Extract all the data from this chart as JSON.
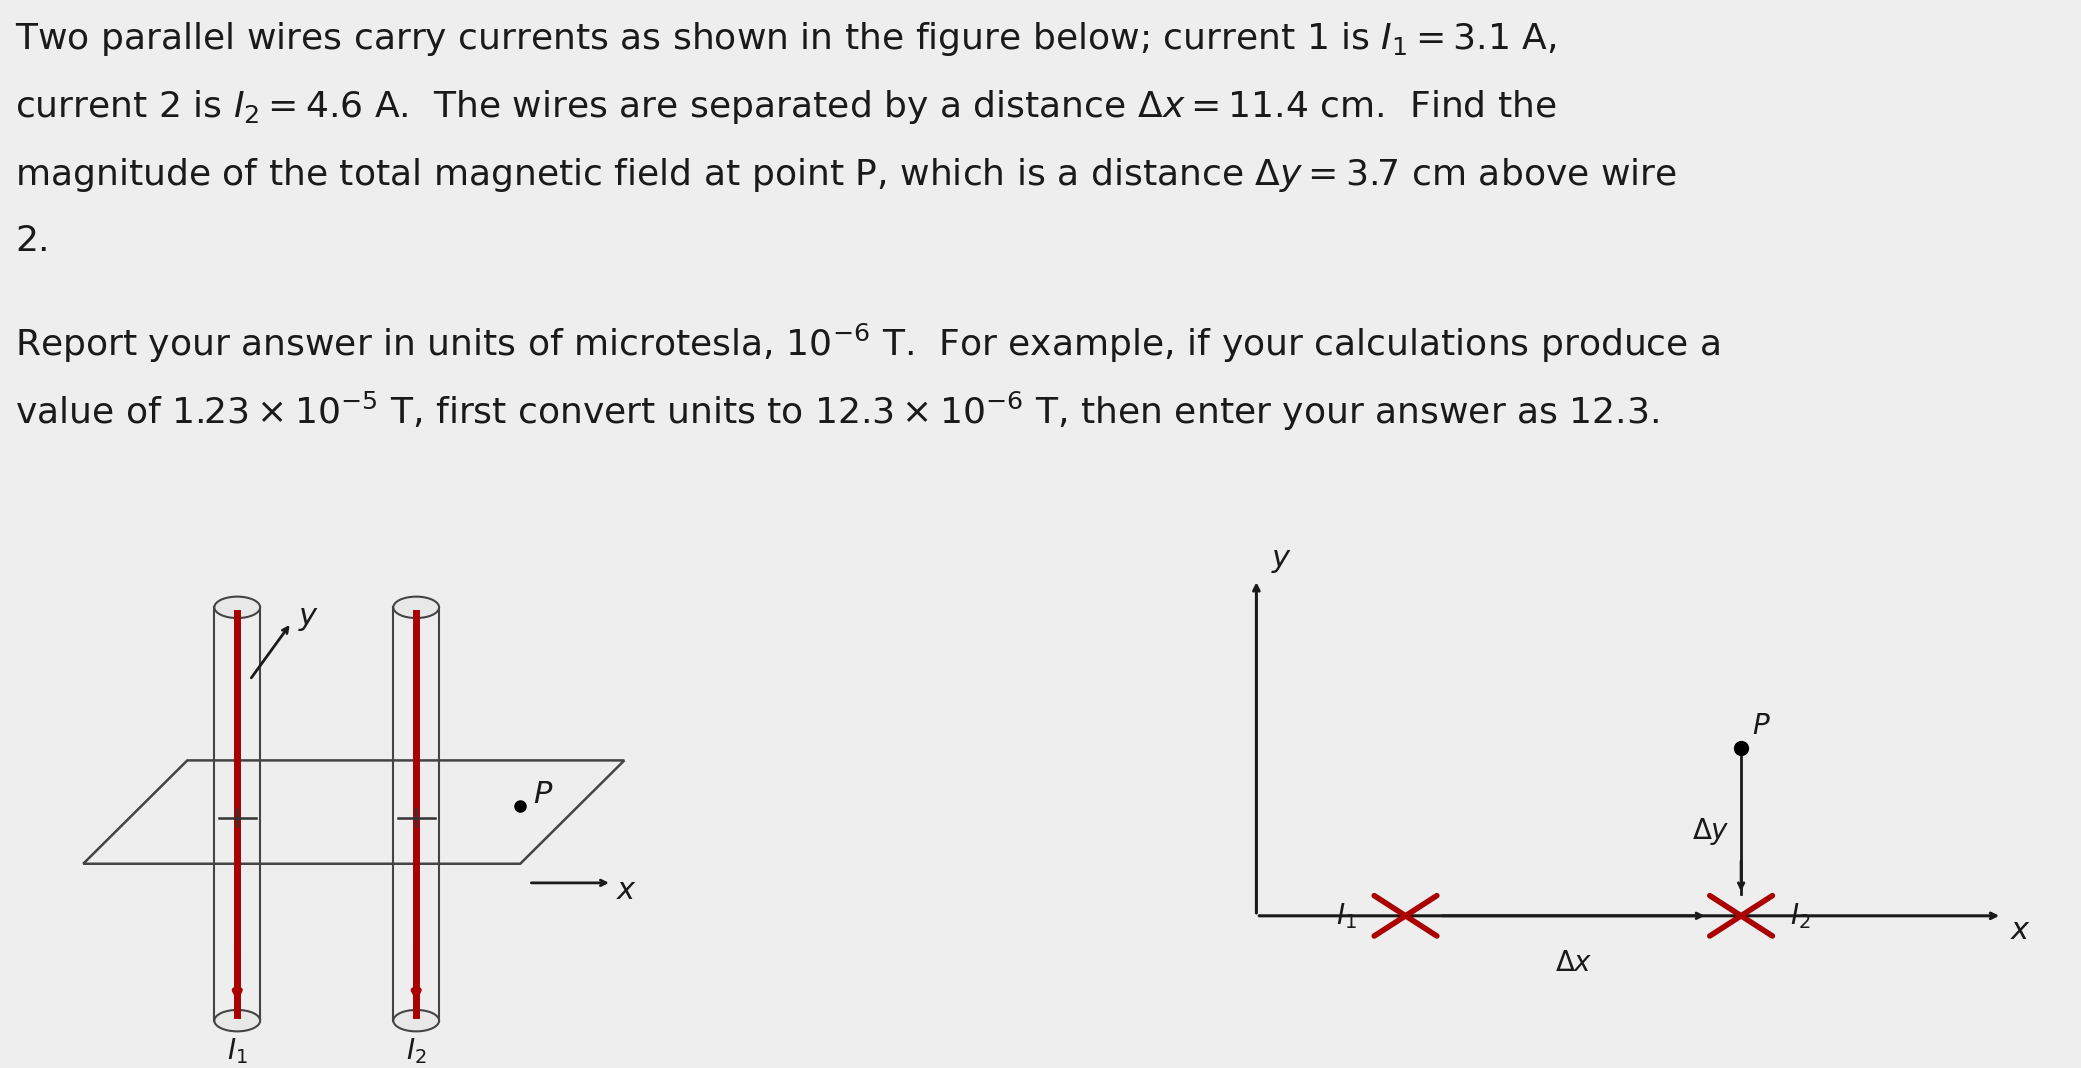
{
  "bg_color": "#eeeeee",
  "text_color": "#1a1a1a",
  "title_lines": [
    "Two parallel wires carry currents as shown in the figure below; current 1 is $I_1 = 3.1$ A,",
    "current 2 is $I_2 = 4.6$ A.  The wires are separated by a distance $\\Delta x = 11.4$ cm.  Find the",
    "magnitude of the total magnetic field at point P, which is a distance $\\Delta y = 3.7$ cm above wire",
    "2."
  ],
  "body_lines": [
    "Report your answer in units of microtesla, $10^{-6}$ T.  For example, if your calculations produce a",
    "value of $1.23 \\times 10^{-5}$ T, first convert units to $12.3 \\times 10^{-6}$ T, then enter your answer as 12.3."
  ],
  "red": "#aa0000",
  "dark": "#1a1a1a",
  "wire_color": "#aa0000",
  "cyl_fill": "#e8e8e8",
  "cyl_edge": "#444444",
  "line_color": "#333333"
}
